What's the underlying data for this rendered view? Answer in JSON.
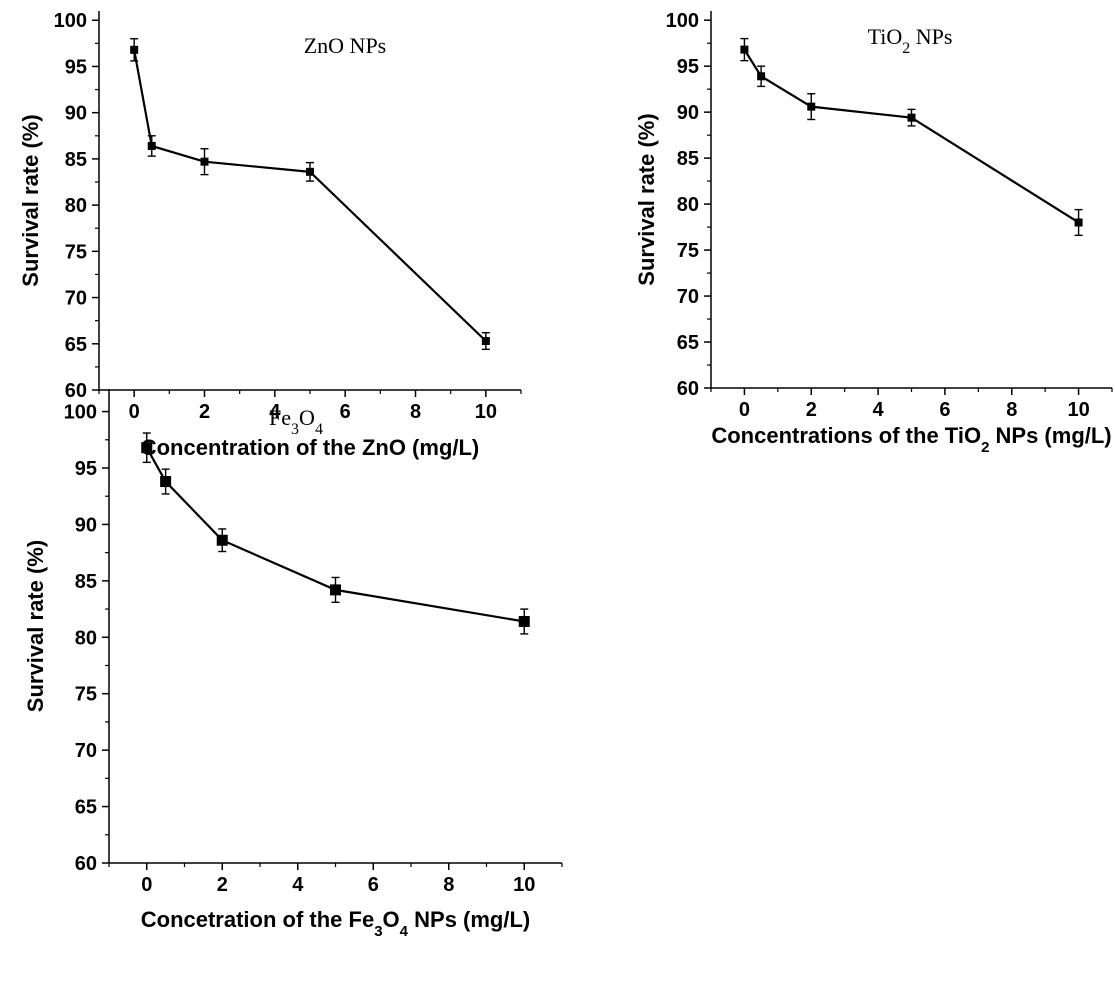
{
  "chart_data": [
    {
      "type": "line",
      "title": "ZnO NPs",
      "xlabel": "Concentration of the ZnO (mg/L)",
      "ylabel": "Survival rate (%)",
      "xlim": [
        -1,
        11
      ],
      "ylim": [
        60,
        101
      ],
      "xticks": [
        0,
        2,
        4,
        6,
        8,
        10
      ],
      "yticks": [
        60,
        65,
        70,
        75,
        80,
        85,
        90,
        95,
        100
      ],
      "grid": false,
      "x": [
        0,
        0.5,
        2,
        5,
        10
      ],
      "y": [
        96.8,
        86.4,
        84.7,
        83.6,
        65.3
      ],
      "error": [
        1.2,
        1.1,
        1.4,
        1.0,
        0.9
      ]
    },
    {
      "type": "line",
      "title": "TiO2 NPs",
      "xlabel": "Concentrations of the TiO2 NPs (mg/L)",
      "ylabel": "Survival rate (%)",
      "xlim": [
        -1,
        11
      ],
      "ylim": [
        60,
        101
      ],
      "xticks": [
        0,
        2,
        4,
        6,
        8,
        10
      ],
      "yticks": [
        60,
        65,
        70,
        75,
        80,
        85,
        90,
        95,
        100
      ],
      "grid": false,
      "x": [
        0,
        0.5,
        2,
        5,
        10
      ],
      "y": [
        96.8,
        93.9,
        90.6,
        89.4,
        78.0
      ],
      "error": [
        1.2,
        1.1,
        1.4,
        0.9,
        1.4
      ]
    },
    {
      "type": "line",
      "title": "Fe3O4",
      "xlabel": "Concetration of the Fe3O4 NPs (mg/L)",
      "ylabel": "Survival rate (%)",
      "xlim": [
        -1,
        11
      ],
      "ylim": [
        60,
        102
      ],
      "xticks": [
        0,
        2,
        4,
        6,
        8,
        10
      ],
      "yticks": [
        60,
        65,
        70,
        75,
        80,
        85,
        90,
        95,
        100
      ],
      "grid": false,
      "x": [
        0,
        0.5,
        2,
        5,
        10
      ],
      "y": [
        96.8,
        93.8,
        88.6,
        84.2,
        81.4
      ],
      "error": [
        1.3,
        1.1,
        1.0,
        1.1,
        1.1
      ]
    }
  ]
}
